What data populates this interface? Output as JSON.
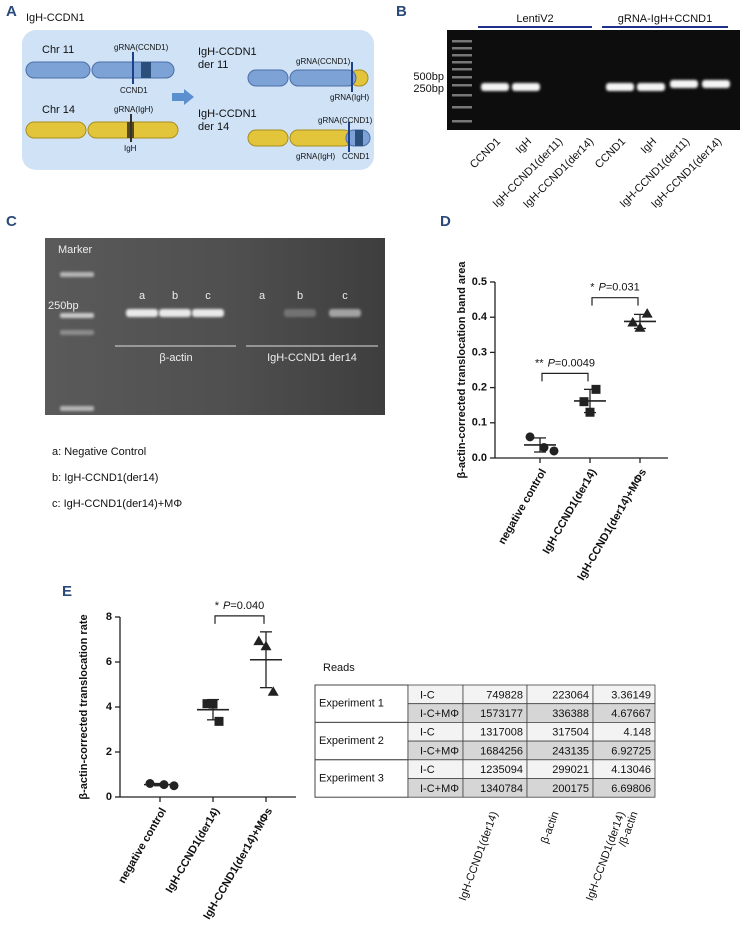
{
  "panel_a": {
    "label": "A",
    "title": "IgH-CCDN1",
    "chr11": "Chr 11",
    "chr11_grna": "gRNA(CCND1)",
    "chr11_gene": "CCND1",
    "chr14": "Chr 14",
    "chr14_grna": "gRNA(IgH)",
    "chr14_gene": "IgH",
    "der11_title": [
      "IgH-CCDN1",
      "der 11"
    ],
    "der11_grna_top": "gRNA(CCND1)",
    "der11_grna_bottom": "gRNA(IgH)",
    "der14_title": [
      "IgH-CCDN1",
      "der 14"
    ],
    "der14_grna_top": "gRNA(CCND1)",
    "der14_grna_bottom": "gRNA(IgH)",
    "der14_gene": "CCND1"
  },
  "panel_b": {
    "label": "B",
    "groups": [
      "LentiV2",
      "gRNA-IgH+CCND1"
    ],
    "markers": [
      "500bp",
      "250bp"
    ],
    "lanes": [
      "CCND1",
      "IgH",
      "IgH-CCND1(der11)",
      "IgH-CCND1(der14)",
      "CCND1",
      "IgH",
      "IgH-CCND1(der11)",
      "IgH-CCND1(der14)"
    ]
  },
  "panel_c": {
    "label": "C",
    "marker": "Marker",
    "size": "250bp",
    "lanes": [
      "a",
      "b",
      "c",
      "a",
      "b",
      "c"
    ],
    "groups": [
      "β-actin",
      "IgH-CCND1 der14"
    ],
    "legend": [
      "a: Negative Control",
      "b: IgH-CCND1(der14)",
      "c: IgH-CCND1(der14)+MΦ"
    ]
  },
  "chart_data": [
    {
      "type": "scatter",
      "label": "D",
      "ylabel": "β-actin-corrected translocation band area",
      "categories": [
        "negative control",
        "IgH-CCND1(der14)",
        "IgH-CCND1(der14)+MΦs"
      ],
      "values": [
        [
          0.06,
          0.03,
          0.02
        ],
        [
          0.195,
          0.16,
          0.13
        ],
        [
          0.41,
          0.385,
          0.37
        ]
      ],
      "means": [
        0.037,
        0.162,
        0.388
      ],
      "errors": [
        0.02,
        0.033,
        0.02
      ],
      "markers": [
        "circle",
        "square",
        "triangle"
      ],
      "color": "#222",
      "ylim": [
        0,
        0.5
      ],
      "yticks": [
        {
          "value": 0,
          "label": "0.0"
        },
        0.1,
        0.2,
        0.3,
        0.4,
        0.5
      ],
      "annotations": [
        {
          "stars": "**",
          "italic": "P",
          "text": "=0.0049"
        },
        {
          "stars": "*",
          "italic": "P",
          "text": "=0.031"
        }
      ]
    },
    {
      "type": "scatter",
      "label": "E",
      "ylabel": "β-actin-corrected translocation rate",
      "categories": [
        "negative control",
        "IgH-CCND1(der14)",
        "IgH-CCND1(der14)+MΦs"
      ],
      "values": [
        [
          0.6,
          0.55,
          0.5
        ],
        [
          3.36149,
          4.148,
          4.13046
        ],
        [
          4.67667,
          6.92725,
          6.69806
        ]
      ],
      "means": [
        0.55,
        3.88,
        6.1
      ],
      "errors": [
        0.05,
        0.45,
        1.24
      ],
      "markers": [
        "circle",
        "square",
        "triangle"
      ],
      "color": "#222",
      "ylim": [
        0,
        8
      ],
      "yticks": [
        0,
        2,
        4,
        6,
        8
      ],
      "annotations": [
        {
          "stars": "*",
          "italic": "P",
          "text": "=0.040"
        }
      ]
    }
  ],
  "table": {
    "title": "Reads",
    "experiments": [
      {
        "name": "Experiment 1",
        "rows": [
          [
            "I-C",
            749828,
            223064,
            3.36149
          ],
          [
            "I-C+MΦ",
            1573177,
            336388,
            4.67667
          ]
        ]
      },
      {
        "name": "Experiment 2",
        "rows": [
          [
            "I-C",
            1317008,
            317504,
            4.148
          ],
          [
            "I-C+MΦ",
            1684256,
            243135,
            6.92725
          ]
        ]
      },
      {
        "name": "Experiment 3",
        "rows": [
          [
            "I-C",
            1235094,
            299021,
            4.13046
          ],
          [
            "I-C+MΦ",
            1340784,
            200175,
            6.69806
          ]
        ]
      }
    ],
    "columns": [
      [
        "IgH-CCND1(der14)"
      ],
      [
        "β-actin"
      ],
      [
        "IgH-CCND1(der14)",
        "/β-actin"
      ]
    ]
  }
}
